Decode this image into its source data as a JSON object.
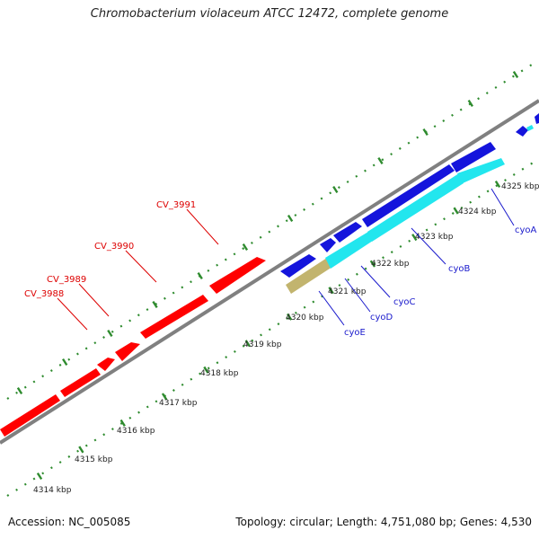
{
  "title": "Chromobacterium violaceum ATCC 12472, complete genome",
  "accession": "Accession: NC_005085",
  "summary": "Topology: circular; Length: 4,751,080 bp; Genes: 4,530",
  "colors": {
    "red_genes": "#ff0000",
    "blue_genes": "#1414dc",
    "cyan_genes": "#22e6ee",
    "khaki_gene": "#c2b46e",
    "backbone": "#808080",
    "ticks": "#2e8b2e",
    "red_label": "#dd0000",
    "blue_label": "#1a1acc"
  },
  "kbp_labels": [
    "4314 kbp",
    "4315 kbp",
    "4316 kbp",
    "4317 kbp",
    "4318 kbp",
    "4319 kbp",
    "4320 kbp",
    "4321 kbp",
    "4322 kbp",
    "4323 kbp",
    "4324 kbp",
    "4325 kbp"
  ],
  "upper_labels": [
    "CV_3988",
    "CV_3989",
    "CV_3990",
    "CV_3991"
  ],
  "lower_labels": [
    "cyoE",
    "cyoD",
    "cyoC",
    "cyoB",
    "cyoA"
  ]
}
